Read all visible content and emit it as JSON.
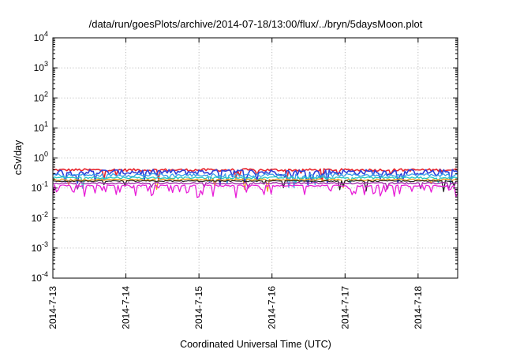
{
  "chart_data": {
    "type": "line",
    "title": "/data/run/goesPlots/archive/2014-07-18/13:00/flux/../bryn/5daysMoon.plot",
    "xlabel": "Coordinated Universal Time (UTC)",
    "ylabel": "cSv/day",
    "yscale": "log",
    "ylim": [
      0.0001,
      10000
    ],
    "xlim": [
      "2014-07-13",
      "2014-07-18 13:00"
    ],
    "grid": true,
    "legend": "none",
    "x_ticks": [
      "2014-7-13",
      "2014-7-14",
      "2014-7-15",
      "2014-7-16",
      "2014-7-17",
      "2014-7-18"
    ],
    "y_ticks": [
      {
        "base": "10",
        "exp": "-4"
      },
      {
        "base": "10",
        "exp": "-3"
      },
      {
        "base": "10",
        "exp": "-2"
      },
      {
        "base": "10",
        "exp": "-1"
      },
      {
        "base": "10",
        "exp": "0"
      },
      {
        "base": "10",
        "exp": "1"
      },
      {
        "base": "10",
        "exp": "2"
      },
      {
        "base": "10",
        "exp": "3"
      },
      {
        "base": "10",
        "exp": "4"
      }
    ],
    "series": [
      {
        "color": "#e8242c",
        "level": 0.4,
        "spread": 0.1,
        "dip": 0.05
      },
      {
        "color": "#2f3fd8",
        "level": 0.34,
        "spread": 0.22,
        "dip": 0.08
      },
      {
        "color": "#3aa0e8",
        "level": 0.27,
        "spread": 0.12,
        "dip": 0.05
      },
      {
        "color": "#1fc8c0",
        "level": 0.22,
        "spread": 0.07,
        "dip": 0.04
      },
      {
        "color": "#f0a020",
        "level": 0.19,
        "spread": 0.06,
        "dip": 0.04
      },
      {
        "color": "#222222",
        "level": 0.17,
        "spread": 0.05,
        "dip": 0.03
      },
      {
        "color": "#a02aa8",
        "level": 0.145,
        "spread": 0.05,
        "dip": 0.05
      },
      {
        "color": "#e81ed8",
        "level": 0.12,
        "spread": 0.06,
        "dip": 0.25
      }
    ]
  }
}
